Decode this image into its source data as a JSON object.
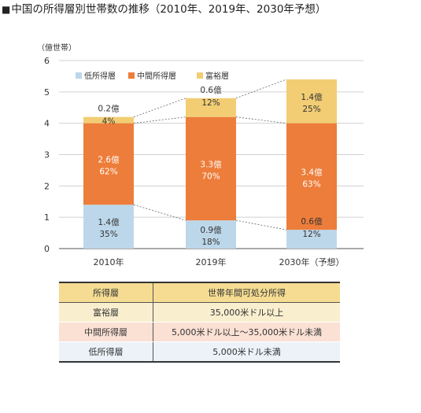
{
  "title": {
    "marker": "■",
    "text": "中国の所得層別世帯数の推移（2010年、2019年、2030年予想）"
  },
  "chart_data": {
    "type": "bar",
    "stacked": true,
    "ylabel": "（億世帯）",
    "ylim": [
      0,
      6
    ],
    "yticks": [
      "0",
      "1",
      "2",
      "3",
      "4",
      "5",
      "6"
    ],
    "grid": true,
    "legend_position": "top-left",
    "categories": [
      "2010年",
      "2019年",
      "2030年（予想）"
    ],
    "series": [
      {
        "name": "低所得層",
        "color": "#bdd7ea",
        "values": [
          1.4,
          0.9,
          0.6
        ],
        "labels": [
          "1.4億",
          "0.9億",
          "0.6億"
        ],
        "shares": [
          "35%",
          "18%",
          "12%"
        ],
        "label_color": "#333333"
      },
      {
        "name": "中間所得層",
        "color": "#ed7d3a",
        "values": [
          2.6,
          3.3,
          3.4
        ],
        "labels": [
          "2.6億",
          "3.3億",
          "3.4億"
        ],
        "shares": [
          "62%",
          "70%",
          "63%"
        ],
        "label_color": "#ffffff"
      },
      {
        "name": "富裕層",
        "color": "#f2cd74",
        "values": [
          0.2,
          0.6,
          1.4
        ],
        "labels": [
          "0.2億",
          "0.6億",
          "1.4億"
        ],
        "shares": [
          "4%",
          "12%",
          "25%"
        ],
        "label_color": "#333333"
      }
    ]
  },
  "table": {
    "headers": [
      "所得層",
      "世帯年間可処分所得"
    ],
    "rows": [
      {
        "layer": "富裕層",
        "income": "35,000米ドル以上"
      },
      {
        "layer": "中間所得層",
        "income": "5,000米ドル以上～35,000米ドル未満"
      },
      {
        "layer": "低所得層",
        "income": "5,000米ドル未満"
      }
    ],
    "colors": {
      "header": "#f5dc92",
      "rich": "#f9efcf",
      "middle": "#fbe0d4",
      "low": "#ecf2f8"
    }
  }
}
